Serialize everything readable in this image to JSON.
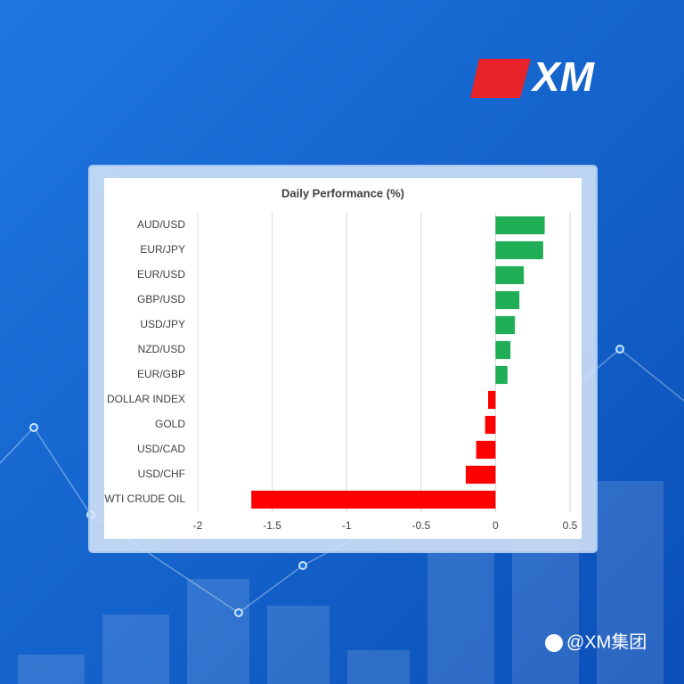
{
  "brand": {
    "logo": "XM",
    "watermark": "@XM集团"
  },
  "chart_data": {
    "type": "hbar",
    "title": "Daily Performance (%)",
    "categories": [
      "AUD/USD",
      "EUR/JPY",
      "EUR/USD",
      "GBP/USD",
      "USD/JPY",
      "NZD/USD",
      "EUR/GBP",
      "DOLLAR INDEX",
      "GOLD",
      "USD/CAD",
      "USD/CHF",
      "WTI CRUDE OIL"
    ],
    "values": [
      0.33,
      0.32,
      0.19,
      0.16,
      0.13,
      0.1,
      0.08,
      -0.05,
      -0.07,
      -0.13,
      -0.2,
      -1.64
    ],
    "positive_color": "#1fae55",
    "negative_color": "#ff0000",
    "xlim": [
      -2,
      0.5
    ],
    "xticks": [
      -2,
      -1.5,
      -1,
      -0.5,
      0,
      0.5
    ],
    "grid": true
  }
}
